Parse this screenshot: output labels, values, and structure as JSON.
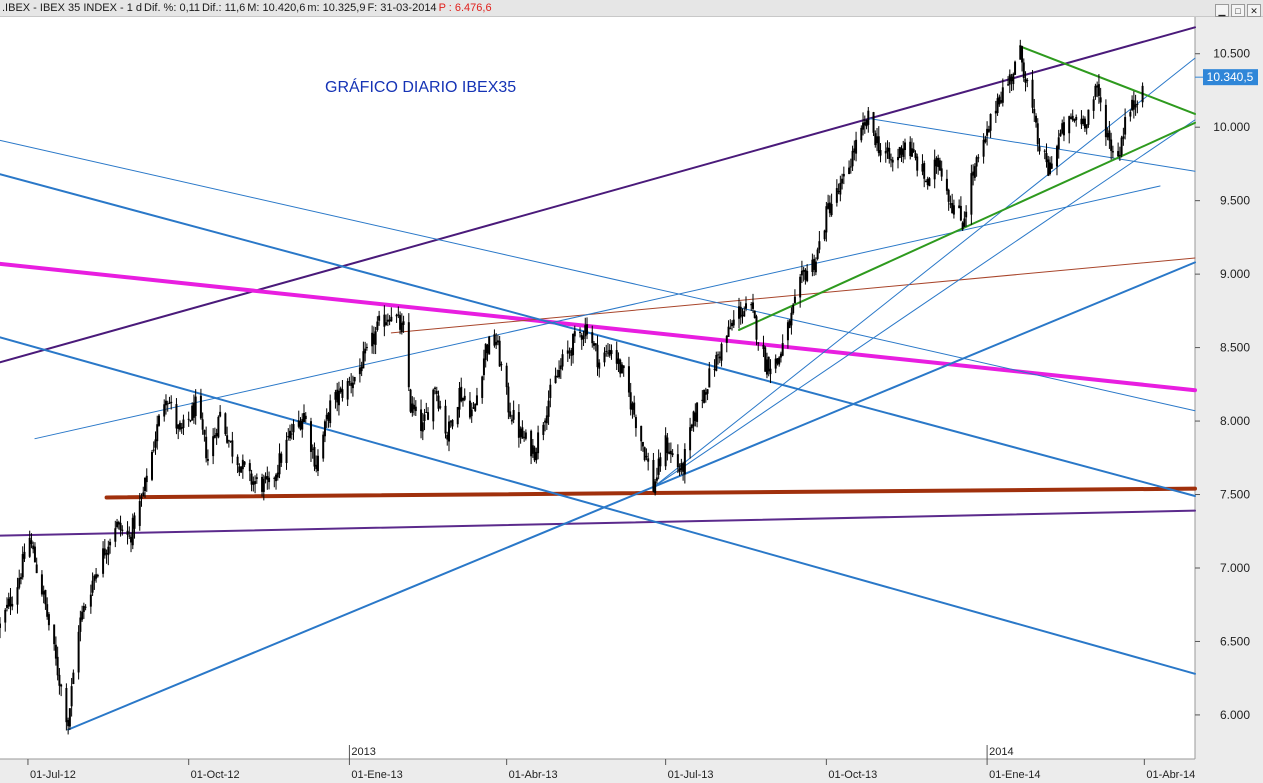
{
  "window": {
    "title_segments": [
      {
        "text": ".IBEX - IBEX 35 INDEX - 1 d",
        "color": "#1a1a1a"
      },
      {
        "text": "Dif. %: 0,11",
        "color": "#1a1a1a"
      },
      {
        "text": "Dif.: 11,6",
        "color": "#1a1a1a"
      },
      {
        "text": "M: 10.420,6",
        "color": "#1a1a1a"
      },
      {
        "text": "m: 10.325,9",
        "color": "#1a1a1a"
      },
      {
        "text": "F: 31-03-2014",
        "color": "#1a1a1a"
      },
      {
        "text": "P : 6.476,6",
        "color": "#e0201c"
      }
    ],
    "controls": [
      "minimize-icon",
      "restore-icon",
      "close-icon"
    ]
  },
  "chart_data": {
    "type": "candlestick",
    "title": "GRÁFICO DIARIO IBEX35",
    "title_color": "#1533b5",
    "y_range": [
      5700,
      10750
    ],
    "y_ticks": [
      6000,
      6500,
      7000,
      7500,
      8000,
      8500,
      9000,
      9500,
      10000,
      10500
    ],
    "y_tick_labels": [
      "6.000",
      "6.500",
      "7.000",
      "7.500",
      "8.000",
      "8.500",
      "9.000",
      "9.500",
      "10.000",
      "10.500"
    ],
    "last_price": 10340.5,
    "last_price_label": "10.340,5",
    "last_price_color": "#2f86d8",
    "x_range": [
      "2012-06-15",
      "2014-04-30"
    ],
    "x_ticks": [
      {
        "date": "2012-07-01",
        "label": "01-Jul-12"
      },
      {
        "date": "2012-10-01",
        "label": "01-Oct-12"
      },
      {
        "date": "2013-01-01",
        "label": "01-Ene-13"
      },
      {
        "date": "2013-04-01",
        "label": "01-Abr-13"
      },
      {
        "date": "2013-07-01",
        "label": "01-Jul-13"
      },
      {
        "date": "2013-10-01",
        "label": "01-Oct-13"
      },
      {
        "date": "2014-01-01",
        "label": "01-Ene-14"
      },
      {
        "date": "2014-04-01",
        "label": "01-Abr-14"
      }
    ],
    "year_markers": [
      {
        "date": "2013-01-01",
        "label": "2013"
      },
      {
        "date": "2014-01-01",
        "label": "2014"
      }
    ],
    "price_path": [
      [
        "2012-06-15",
        6600
      ],
      [
        "2012-06-25",
        6900
      ],
      [
        "2012-07-02",
        7200
      ],
      [
        "2012-07-10",
        6800
      ],
      [
        "2012-07-18",
        6300
      ],
      [
        "2012-07-24",
        5950
      ],
      [
        "2012-07-30",
        6600
      ],
      [
        "2012-08-08",
        6950
      ],
      [
        "2012-08-20",
        7300
      ],
      [
        "2012-08-28",
        7200
      ],
      [
        "2012-09-05",
        7500
      ],
      [
        "2012-09-12",
        7900
      ],
      [
        "2012-09-18",
        8200
      ],
      [
        "2012-09-26",
        7900
      ],
      [
        "2012-10-05",
        8100
      ],
      [
        "2012-10-12",
        7750
      ],
      [
        "2012-10-19",
        8050
      ],
      [
        "2012-10-26",
        7800
      ],
      [
        "2012-11-05",
        7600
      ],
      [
        "2012-11-16",
        7550
      ],
      [
        "2012-11-28",
        7900
      ],
      [
        "2012-12-06",
        8050
      ],
      [
        "2012-12-13",
        7700
      ],
      [
        "2012-12-21",
        8100
      ],
      [
        "2013-01-04",
        8300
      ],
      [
        "2013-01-11",
        8450
      ],
      [
        "2013-01-18",
        8650
      ],
      [
        "2013-01-25",
        8750
      ],
      [
        "2013-02-01",
        8600
      ],
      [
        "2013-02-05",
        8100
      ],
      [
        "2013-02-12",
        7950
      ],
      [
        "2013-02-19",
        8250
      ],
      [
        "2013-02-26",
        7900
      ],
      [
        "2013-03-05",
        8200
      ],
      [
        "2013-03-13",
        8050
      ],
      [
        "2013-03-20",
        8500
      ],
      [
        "2013-03-26",
        8550
      ],
      [
        "2013-04-02",
        8100
      ],
      [
        "2013-04-09",
        7900
      ],
      [
        "2013-04-17",
        7800
      ],
      [
        "2013-04-25",
        8150
      ],
      [
        "2013-05-03",
        8400
      ],
      [
        "2013-05-10",
        8550
      ],
      [
        "2013-05-17",
        8650
      ],
      [
        "2013-05-24",
        8400
      ],
      [
        "2013-05-31",
        8500
      ],
      [
        "2013-06-07",
        8300
      ],
      [
        "2013-06-13",
        8050
      ],
      [
        "2013-06-20",
        7750
      ],
      [
        "2013-06-24",
        7550
      ],
      [
        "2013-07-01",
        7850
      ],
      [
        "2013-07-10",
        7650
      ],
      [
        "2013-07-18",
        8050
      ],
      [
        "2013-07-26",
        8300
      ],
      [
        "2013-08-02",
        8500
      ],
      [
        "2013-08-12",
        8750
      ],
      [
        "2013-08-19",
        8750
      ],
      [
        "2013-08-27",
        8400
      ],
      [
        "2013-09-03",
        8400
      ],
      [
        "2013-09-11",
        8700
      ],
      [
        "2013-09-18",
        9000
      ],
      [
        "2013-09-25",
        9100
      ],
      [
        "2013-10-02",
        9450
      ],
      [
        "2013-10-10",
        9600
      ],
      [
        "2013-10-17",
        9850
      ],
      [
        "2013-10-25",
        10050
      ],
      [
        "2013-11-01",
        9850
      ],
      [
        "2013-11-08",
        9750
      ],
      [
        "2013-11-15",
        9900
      ],
      [
        "2013-11-22",
        9750
      ],
      [
        "2013-11-29",
        9600
      ],
      [
        "2013-12-04",
        9800
      ],
      [
        "2013-12-11",
        9500
      ],
      [
        "2013-12-18",
        9350
      ],
      [
        "2013-12-23",
        9650
      ],
      [
        "2013-12-31",
        9900
      ],
      [
        "2014-01-07",
        10200
      ],
      [
        "2014-01-13",
        10300
      ],
      [
        "2014-01-20",
        10500
      ],
      [
        "2014-01-24",
        10300
      ],
      [
        "2014-01-30",
        9900
      ],
      [
        "2014-02-05",
        9700
      ],
      [
        "2014-02-12",
        9950
      ],
      [
        "2014-02-19",
        10050
      ],
      [
        "2014-02-26",
        10050
      ],
      [
        "2014-03-05",
        10250
      ],
      [
        "2014-03-12",
        9900
      ],
      [
        "2014-03-17",
        9800
      ],
      [
        "2014-03-21",
        10050
      ],
      [
        "2014-03-26",
        10150
      ],
      [
        "2014-03-31",
        10340
      ]
    ],
    "trendlines": [
      {
        "name": "purple-upper-channel",
        "color": "#4a1a7a",
        "width": 2,
        "points": [
          [
            "2012-06-15",
            8400
          ],
          [
            "2014-04-30",
            10680
          ]
        ]
      },
      {
        "name": "purple-lower-channel",
        "color": "#5b2a8c",
        "width": 2,
        "points": [
          [
            "2012-06-15",
            7220
          ],
          [
            "2014-04-30",
            7390
          ]
        ]
      },
      {
        "name": "magenta-resistance",
        "color": "#e81ee0",
        "width": 4,
        "points": [
          [
            "2012-06-15",
            9070
          ],
          [
            "2014-04-30",
            8210
          ]
        ]
      },
      {
        "name": "brown-support",
        "color": "#a0300c",
        "width": 4,
        "points": [
          [
            "2012-08-15",
            7480
          ],
          [
            "2014-04-30",
            7540
          ]
        ]
      },
      {
        "name": "brown-thin-line",
        "color": "#a8452b",
        "width": 1,
        "points": [
          [
            "2013-01-25",
            8600
          ],
          [
            "2014-04-30",
            9110
          ]
        ]
      },
      {
        "name": "blue-downtrend-upper",
        "color": "#2a78c8",
        "width": 2,
        "points": [
          [
            "2012-06-15",
            9680
          ],
          [
            "2014-04-30",
            7490
          ]
        ]
      },
      {
        "name": "blue-downtrend-lower",
        "color": "#2a78c8",
        "width": 2,
        "points": [
          [
            "2012-06-15",
            8570
          ],
          [
            "2014-04-30",
            6280
          ]
        ]
      },
      {
        "name": "blue-major-uptrend",
        "color": "#2a78c8",
        "width": 2,
        "points": [
          [
            "2012-07-24",
            5900
          ],
          [
            "2014-04-30",
            9080
          ]
        ]
      },
      {
        "name": "blue-thin-downtrend",
        "color": "#2a78c8",
        "width": 1,
        "points": [
          [
            "2012-06-15",
            9910
          ],
          [
            "2014-04-30",
            8070
          ]
        ]
      },
      {
        "name": "blue-thin-rising",
        "color": "#2a78c8",
        "width": 1,
        "points": [
          [
            "2012-07-05",
            7880
          ],
          [
            "2014-04-10",
            9600
          ]
        ]
      },
      {
        "name": "blue-thin-fan-1",
        "color": "#2a78c8",
        "width": 1,
        "points": [
          [
            "2013-06-24",
            7550
          ],
          [
            "2014-04-30",
            10470
          ]
        ]
      },
      {
        "name": "blue-thin-fan-2",
        "color": "#2a78c8",
        "width": 1,
        "points": [
          [
            "2013-06-24",
            7550
          ],
          [
            "2014-04-30",
            10050
          ]
        ]
      },
      {
        "name": "blue-thin-top",
        "color": "#2a78c8",
        "width": 1,
        "points": [
          [
            "2013-10-25",
            10060
          ],
          [
            "2014-04-30",
            9700
          ]
        ]
      },
      {
        "name": "green-uptrend",
        "color": "#2e9a1e",
        "width": 2,
        "points": [
          [
            "2013-08-12",
            8620
          ],
          [
            "2014-04-30",
            10030
          ]
        ]
      },
      {
        "name": "green-downtrend",
        "color": "#2e9a1e",
        "width": 2,
        "points": [
          [
            "2014-01-20",
            10550
          ],
          [
            "2014-04-30",
            10090
          ]
        ]
      }
    ]
  }
}
